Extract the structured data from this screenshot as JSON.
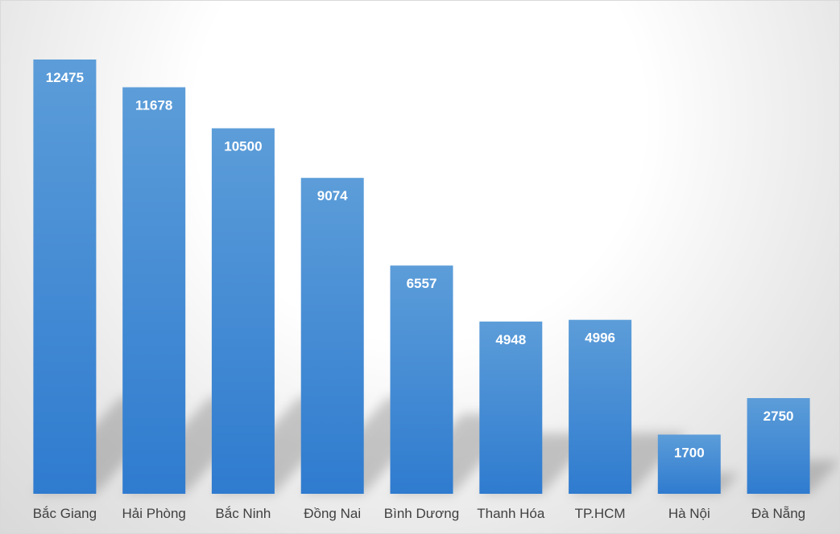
{
  "chart_data": {
    "type": "bar",
    "categories": [
      "Bắc Giang",
      "Hải Phòng",
      "Bắc Ninh",
      "Đồng Nai",
      "Bình Dương",
      "Thanh Hóa",
      "TP.HCM",
      "Hà Nội",
      "Đà Nẵng"
    ],
    "values": [
      12475,
      11678,
      10500,
      9074,
      6557,
      4948,
      4996,
      1700,
      2750
    ],
    "title": "",
    "xlabel": "",
    "ylabel": "",
    "ylim": [
      0,
      13700
    ],
    "grid": false,
    "legend": "none",
    "data_labels": "inside-end",
    "bar_color": "#4a8fd4",
    "bar_color_light": "#5c9dd9",
    "bar_color_dark": "#2f7bcf",
    "label_color": "#ffffff",
    "category_label_color": "#404040"
  }
}
